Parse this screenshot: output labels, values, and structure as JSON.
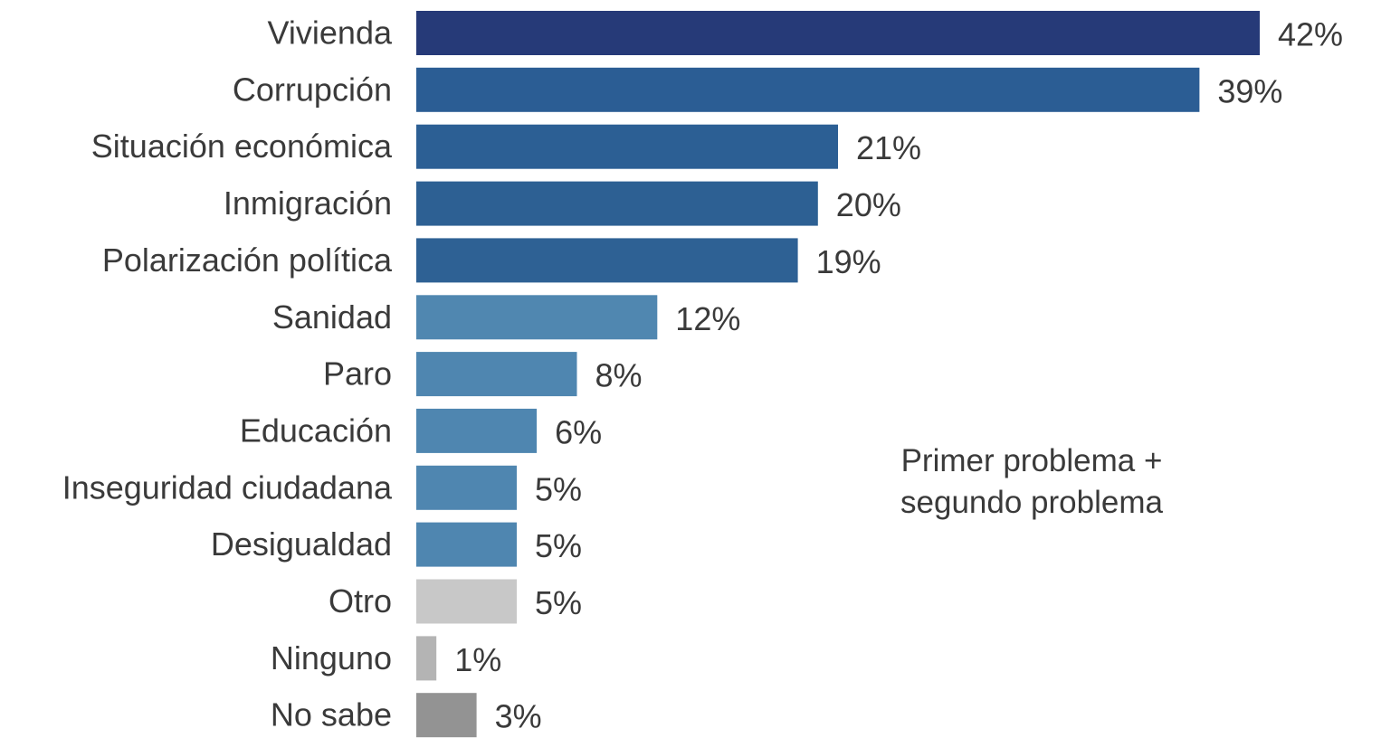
{
  "chart_data": {
    "type": "bar",
    "orientation": "horizontal",
    "categories": [
      "Vivienda",
      "Corrupción",
      "Situación económica",
      "Inmigración",
      "Polarización política",
      "Sanidad",
      "Paro",
      "Educación",
      "Inseguridad ciudadana",
      "Desigualdad",
      "Otro",
      "Ninguno",
      "No sabe"
    ],
    "values": [
      42,
      39,
      21,
      20,
      19,
      12,
      8,
      6,
      5,
      5,
      5,
      1,
      3
    ],
    "value_labels": [
      "42%",
      "39%",
      "21%",
      "20%",
      "19%",
      "12%",
      "8%",
      "6%",
      "5%",
      "5%",
      "5%",
      "1%",
      "3%"
    ],
    "colors": [
      "#263a78",
      "#2b5d94",
      "#2c5f94",
      "#2d6093",
      "#2e6194",
      "#5087b0",
      "#4f86b0",
      "#4f86b0",
      "#4f86b0",
      "#4f86b0",
      "#c8c8c8",
      "#b4b4b4",
      "#939393"
    ],
    "annotation": [
      "Primer problema +",
      "segundo problema"
    ],
    "xlim": [
      0,
      42
    ],
    "grid": false,
    "legend": "none"
  }
}
